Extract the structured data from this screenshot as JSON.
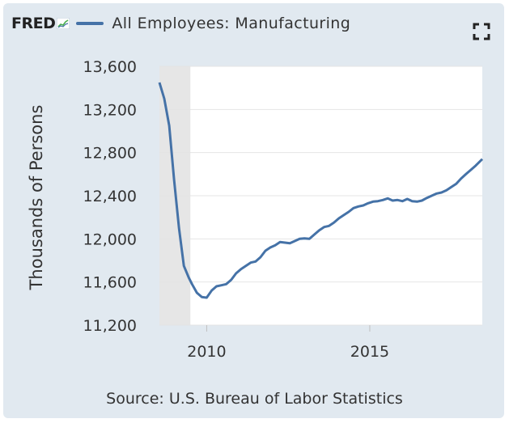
{
  "header": {
    "logo_text": "FRED",
    "series_title": "All Employees: Manufacturing",
    "fullscreen_icon": "fullscreen-icon"
  },
  "source": "Source: U.S. Bureau of Labor Statistics",
  "colors": {
    "background": "#e1e9f0",
    "series_line": "#4572a7",
    "recession_shade": "#e6e6e6"
  },
  "chart_data": {
    "type": "line",
    "title": "All Employees: Manufacturing",
    "ylabel": "Thousands of Persons",
    "xlabel": "",
    "xlim": [
      2008.55,
      2018.45
    ],
    "ylim": [
      11200,
      13600
    ],
    "x_ticks": [
      2010,
      2015
    ],
    "x_tick_labels": [
      "2010",
      "2015"
    ],
    "y_ticks": [
      11200,
      11600,
      12000,
      12400,
      12800,
      13200,
      13600
    ],
    "y_tick_labels": [
      "11,200",
      "11,600",
      "12,000",
      "12,400",
      "12,800",
      "13,200",
      "13,600"
    ],
    "grid": "horizontal",
    "recession_band": [
      2008.55,
      2009.5
    ],
    "series": [
      {
        "name": "All Employees: Manufacturing",
        "x": [
          2008.55,
          2008.7,
          2008.85,
          2009.0,
          2009.15,
          2009.3,
          2009.45,
          2009.55,
          2009.7,
          2009.85,
          2010.0,
          2010.15,
          2010.3,
          2010.45,
          2010.6,
          2010.75,
          2010.9,
          2011.05,
          2011.2,
          2011.35,
          2011.5,
          2011.65,
          2011.8,
          2011.95,
          2012.1,
          2012.25,
          2012.4,
          2012.55,
          2012.7,
          2012.85,
          2013.0,
          2013.15,
          2013.3,
          2013.45,
          2013.6,
          2013.75,
          2013.9,
          2014.05,
          2014.2,
          2014.35,
          2014.5,
          2014.65,
          2014.8,
          2014.95,
          2015.1,
          2015.25,
          2015.4,
          2015.55,
          2015.7,
          2015.85,
          2016.0,
          2016.15,
          2016.3,
          2016.45,
          2016.6,
          2016.75,
          2016.9,
          2017.05,
          2017.2,
          2017.35,
          2017.5,
          2017.65,
          2017.8,
          2017.95,
          2018.1,
          2018.25,
          2018.45
        ],
        "y": [
          13450,
          13300,
          13050,
          12550,
          12100,
          11750,
          11640,
          11580,
          11500,
          11460,
          11455,
          11520,
          11560,
          11570,
          11580,
          11620,
          11680,
          11720,
          11750,
          11780,
          11790,
          11830,
          11890,
          11920,
          11940,
          11970,
          11965,
          11960,
          11980,
          12000,
          12005,
          12000,
          12040,
          12080,
          12110,
          12120,
          12150,
          12190,
          12220,
          12250,
          12285,
          12300,
          12310,
          12330,
          12345,
          12350,
          12360,
          12375,
          12355,
          12360,
          12350,
          12370,
          12350,
          12345,
          12355,
          12380,
          12400,
          12420,
          12430,
          12450,
          12480,
          12510,
          12560,
          12600,
          12640,
          12680,
          12740
        ]
      }
    ]
  }
}
